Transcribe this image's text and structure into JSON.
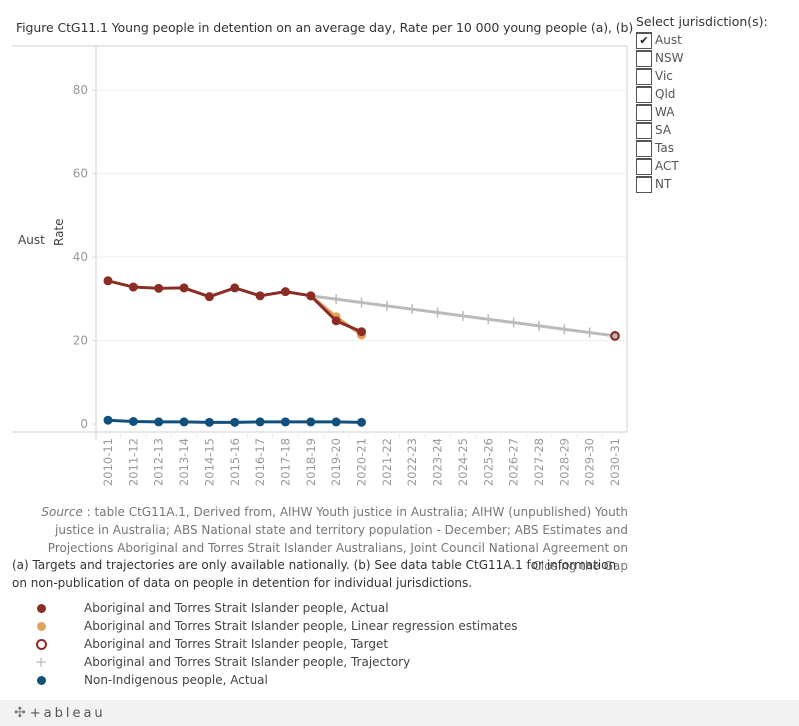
{
  "title": "Figure CtG11.1 Young people in detention on an average day, Rate per 10 000 young people (a), (b)",
  "row_label": "Aust",
  "filter": {
    "title": "Select jurisdiction(s):",
    "items": [
      {
        "label": "Aust",
        "checked": true
      },
      {
        "label": "NSW",
        "checked": false
      },
      {
        "label": "Vic",
        "checked": false
      },
      {
        "label": "Qld",
        "checked": false
      },
      {
        "label": "WA",
        "checked": false
      },
      {
        "label": "SA",
        "checked": false
      },
      {
        "label": "Tas",
        "checked": false
      },
      {
        "label": "ACT",
        "checked": false
      },
      {
        "label": "NT",
        "checked": false
      }
    ],
    "check_glyph": "✔"
  },
  "source": {
    "label": "Source",
    "text": " : table CtG11A.1, Derived from, AIHW Youth justice in Australia; AIHW (unpublished) Youth justice in Australia; ABS National state and territory population - December; ABS Estimates and Projections Aboriginal and Torres Strait Islander Australians, Joint Council National Agreement on Closing the Gap"
  },
  "note": "(a) Targets and trajectories are only available nationally. (b) See data table CtG11A.1 for information on non-publication of data on people in detention for individual jurisdictions.",
  "footer": {
    "logo_text": "+ableau",
    "logo_icon": "tableau-logo-icon"
  },
  "chart_data": {
    "type": "line",
    "title": "Figure CtG11.1 Young people in detention on an average day, Rate per 10 000 young people (a), (b)",
    "xlabel": "",
    "ylabel": "Rate",
    "ylim": [
      0,
      90
    ],
    "yticks": [
      0,
      20,
      40,
      60,
      80
    ],
    "grid": true,
    "legend_position": "bottom-left",
    "categories": [
      "2010-11",
      "2011-12",
      "2012-13",
      "2013-14",
      "2014-15",
      "2015-16",
      "2016-17",
      "2017-18",
      "2018-19",
      "2019-20",
      "2020-21",
      "2021-22",
      "2022-23",
      "2023-24",
      "2024-25",
      "2025-26",
      "2026-27",
      "2027-28",
      "2028-29",
      "2029-30",
      "2030-31"
    ],
    "series": [
      {
        "name": "Aboriginal and Torres Strait Islander people, Linear regression estimates",
        "color": "#e3a25a",
        "marker": "dot",
        "values": [
          null,
          null,
          null,
          null,
          null,
          null,
          null,
          null,
          30.7,
          25.7,
          21.3,
          null,
          null,
          null,
          null,
          null,
          null,
          null,
          null,
          null,
          null
        ]
      },
      {
        "name": "Aboriginal and Torres Strait Islander people, Trajectory",
        "color": "#bbbbbb",
        "marker": "plus",
        "values": [
          null,
          null,
          null,
          null,
          null,
          null,
          null,
          null,
          30.7,
          29.9,
          29.1,
          28.3,
          27.5,
          26.7,
          25.9,
          25.1,
          24.3,
          23.5,
          22.7,
          21.9,
          21.1
        ]
      },
      {
        "name": "Aboriginal and Torres Strait Islander people, Actual",
        "color": "#8c2d25",
        "marker": "dot",
        "values": [
          34.3,
          32.8,
          32.5,
          32.6,
          30.5,
          32.6,
          30.7,
          31.7,
          30.7,
          24.7,
          22.1,
          null,
          null,
          null,
          null,
          null,
          null,
          null,
          null,
          null,
          null
        ]
      },
      {
        "name": "Aboriginal and Torres Strait Islander people, Target",
        "color": "#8c2d25",
        "marker": "ring",
        "values": [
          null,
          null,
          null,
          null,
          null,
          null,
          null,
          null,
          null,
          null,
          null,
          null,
          null,
          null,
          null,
          null,
          null,
          null,
          null,
          null,
          21.1
        ]
      },
      {
        "name": "Non-Indigenous people, Actual",
        "color": "#11507d",
        "marker": "dot",
        "values": [
          0.9,
          0.6,
          0.5,
          0.5,
          0.4,
          0.4,
          0.5,
          0.5,
          0.5,
          0.5,
          0.4,
          null,
          null,
          null,
          null,
          null,
          null,
          null,
          null,
          null,
          null
        ]
      }
    ],
    "legend": [
      {
        "label": "Aboriginal and Torres Strait Islander people, Actual",
        "color": "#8c2d25",
        "marker": "dot"
      },
      {
        "label": "Aboriginal and Torres Strait Islander people, Linear regression estimates",
        "color": "#e3a25a",
        "marker": "dot"
      },
      {
        "label": "Aboriginal and Torres Strait Islander people, Target",
        "color": "#8c2d25",
        "marker": "ring"
      },
      {
        "label": "Aboriginal and Torres Strait Islander people, Trajectory",
        "color": "#bbbbbb",
        "marker": "plus"
      },
      {
        "label": "Non-Indigenous people, Actual",
        "color": "#11507d",
        "marker": "dot"
      }
    ]
  }
}
